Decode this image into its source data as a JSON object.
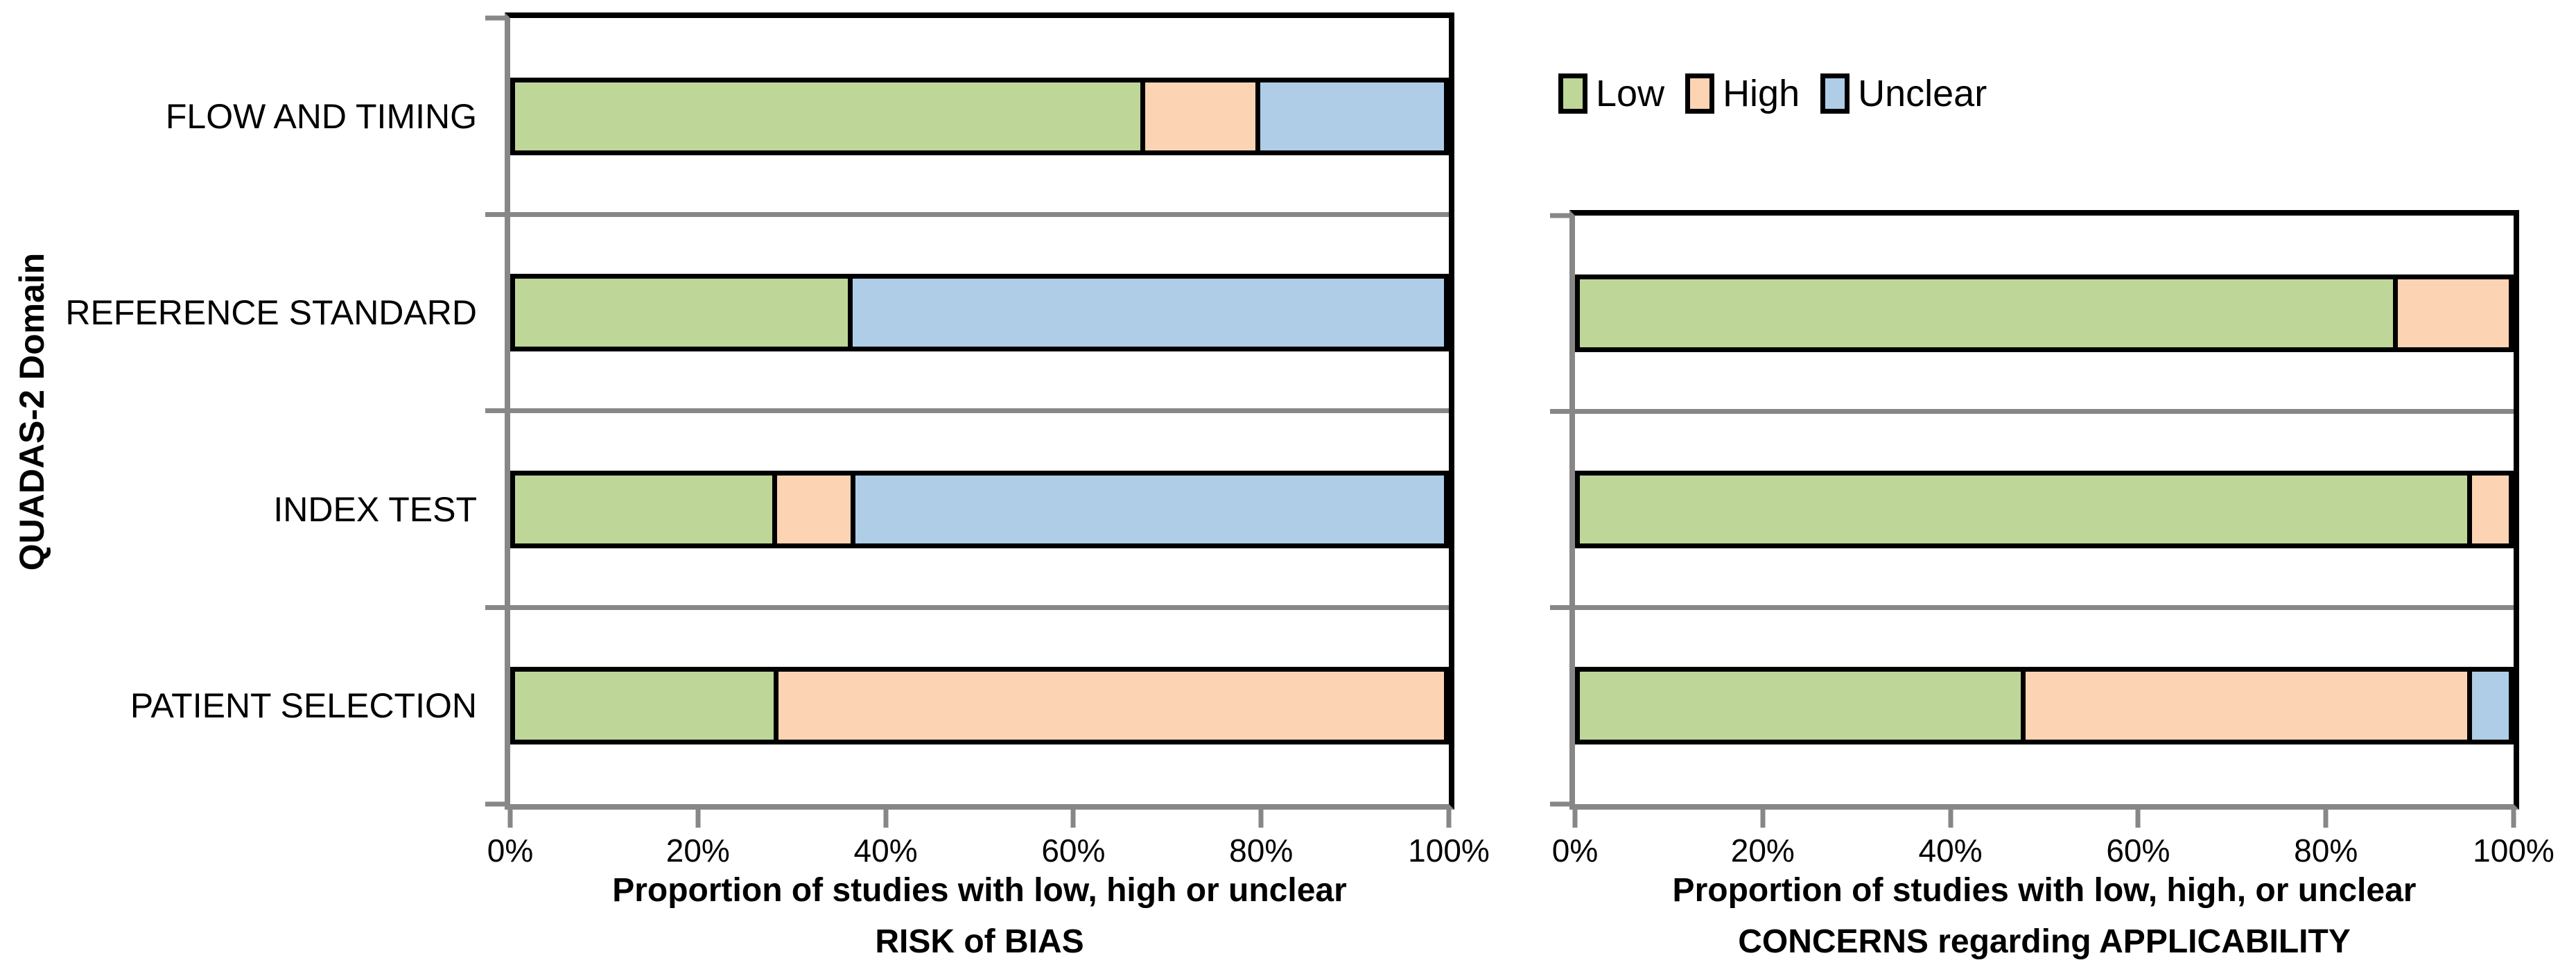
{
  "figure": {
    "y_axis_title": "QUADAS-2 Domain",
    "categories": [
      "FLOW AND TIMING",
      "REFERENCE STANDARD",
      "INDEX TEST",
      "PATIENT SELECTION"
    ],
    "x_tick_labels": [
      "0%",
      "20%",
      "40%",
      "60%",
      "80%",
      "100%"
    ],
    "legend": {
      "items": [
        {
          "label": "Low",
          "color": "#BED698"
        },
        {
          "label": "High",
          "color": "#FCD4B3"
        },
        {
          "label": "Unclear",
          "color": "#AFCDE7"
        }
      ]
    },
    "charts": [
      {
        "id": "risk-of-bias",
        "title_line1": "Proportion of studies with low, high or unclear",
        "title_line2": "RISK of BIAS",
        "rows": [
          {
            "category": "FLOW AND TIMING",
            "segments": [
              {
                "series": "Low",
                "value": 68
              },
              {
                "series": "High",
                "value": 12
              },
              {
                "series": "Unclear",
                "value": 20
              }
            ]
          },
          {
            "category": "REFERENCE STANDARD",
            "segments": [
              {
                "series": "Low",
                "value": 36
              },
              {
                "series": "Unclear",
                "value": 64
              }
            ]
          },
          {
            "category": "INDEX TEST",
            "segments": [
              {
                "series": "Low",
                "value": 28
              },
              {
                "series": "High",
                "value": 8
              },
              {
                "series": "Unclear",
                "value": 64
              }
            ]
          },
          {
            "category": "PATIENT SELECTION",
            "segments": [
              {
                "series": "Low",
                "value": 28
              },
              {
                "series": "High",
                "value": 72
              }
            ]
          }
        ]
      },
      {
        "id": "applicability",
        "title_line1": "Proportion of studies with low, high, or unclear",
        "title_line2": "CONCERNS regarding APPLICABILITY",
        "rows": [
          {
            "category": "REFERENCE STANDARD",
            "segments": [
              {
                "series": "Low",
                "value": 88
              },
              {
                "series": "High",
                "value": 12
              }
            ]
          },
          {
            "category": "INDEX TEST",
            "segments": [
              {
                "series": "Low",
                "value": 96
              },
              {
                "series": "High",
                "value": 4
              }
            ]
          },
          {
            "category": "PATIENT SELECTION",
            "segments": [
              {
                "series": "Low",
                "value": 48
              },
              {
                "series": "High",
                "value": 48
              },
              {
                "series": "Unclear",
                "value": 4
              }
            ]
          }
        ]
      }
    ],
    "colors": {
      "low": "#BED698",
      "high": "#FCD4B3",
      "unclear": "#AFCDE7",
      "axis_gray": "#878787",
      "bar_border": "#000000"
    }
  },
  "chart_data": [
    {
      "type": "bar",
      "orientation": "horizontal",
      "stacked": true,
      "title": "Proportion of studies with low, high or unclear RISK of BIAS",
      "ylabel": "QUADAS-2 Domain",
      "xlabel": "Proportion of studies with low, high or unclear RISK of BIAS",
      "categories": [
        "PATIENT SELECTION",
        "INDEX TEST",
        "REFERENCE STANDARD",
        "FLOW AND TIMING"
      ],
      "series": [
        {
          "name": "Low",
          "values": [
            28,
            28,
            36,
            68
          ]
        },
        {
          "name": "High",
          "values": [
            72,
            8,
            0,
            12
          ]
        },
        {
          "name": "Unclear",
          "values": [
            0,
            64,
            64,
            20
          ]
        }
      ],
      "xlim": [
        0,
        100
      ],
      "x_tick_labels": [
        "0%",
        "20%",
        "40%",
        "60%",
        "80%",
        "100%"
      ],
      "units": "percent",
      "grid": "category-separators",
      "legend_position": "top-right-of-figure",
      "legend_entries": [
        "Low",
        "High",
        "Unclear"
      ]
    },
    {
      "type": "bar",
      "orientation": "horizontal",
      "stacked": true,
      "title": "Proportion of studies with low, high, or unclear CONCERNS regarding APPLICABILITY",
      "ylabel": "QUADAS-2 Domain",
      "xlabel": "Proportion of studies with low, high, or unclear CONCERNS regarding APPLICABILITY",
      "categories": [
        "PATIENT SELECTION",
        "INDEX TEST",
        "REFERENCE STANDARD"
      ],
      "series": [
        {
          "name": "Low",
          "values": [
            48,
            96,
            88
          ]
        },
        {
          "name": "High",
          "values": [
            48,
            4,
            12
          ]
        },
        {
          "name": "Unclear",
          "values": [
            4,
            0,
            0
          ]
        }
      ],
      "xlim": [
        0,
        100
      ],
      "x_tick_labels": [
        "0%",
        "20%",
        "40%",
        "60%",
        "80%",
        "100%"
      ],
      "units": "percent",
      "grid": "category-separators",
      "legend_position": "top-right-of-figure",
      "legend_entries": [
        "Low",
        "High",
        "Unclear"
      ]
    }
  ]
}
